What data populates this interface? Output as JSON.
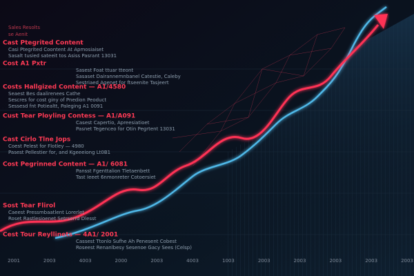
{
  "header": {
    "title": "Sales Resolts",
    "subtitle": "se Aenit"
  },
  "blocks": [
    {
      "heading": "Cast Ptegrited Content",
      "lines": [
        "Casi Ptegrited Coontent At Apmosiaiset",
        "Sasalt tusied sateeit tos Asiss Pasrant 13031"
      ]
    },
    {
      "heading": "Cost A1 Pxtr",
      "lines": [
        "Sasest Foat ttuar tteont",
        "Sasaset Dairannemnbanel Catestie, Caleby",
        "Sestriaed Agenet for ftseenite Tasjeert"
      ]
    },
    {
      "heading": "Costs Hallgized Content — A1/4580",
      "lines": [
        "Seaest Bes daalirenees Cathe",
        "Sescres for cost giny of Pnedion Peoduct",
        "Sessesd fnt Potiealtt, Paleging A1 0091"
      ]
    },
    {
      "heading": "Cust Tear Ployling Contess — A1/A091",
      "lines": [
        "Casest Capertio, Apreesiatioet",
        "Pasnet Tegenceo for Otin Pegrtent 13031"
      ]
    },
    {
      "heading": "Cast Cirlo Tlne Jops",
      "lines": [
        "Coest Pelest for Flotley — 4980",
        "Pasest Pellestier for, and Kgeeeiong Lt0B1"
      ]
    },
    {
      "heading": "Cost Pegrinned Content — A1/ 6081",
      "lines": [
        "Pansst Fgenttalion Tletaenbett",
        "Tast Ieeet 6nmonreter Cotoersiet"
      ]
    },
    {
      "heading": "Sost Tear Flirol",
      "lines": [
        "Caeest Pressmbaatlent Lorerlet",
        "Roset Rastlesioenet Setrsorrd Dlesst"
      ]
    },
    {
      "heading": "Cest Tour Reyllinets — 4A1/ 2001",
      "lines": [
        "Cassest Ttonlo Sufhe Ah Penesent Cobest",
        "Roseest Renanlbesy Sesenoe Gacy Sees (Celsp)"
      ]
    }
  ],
  "x_labels": [
    "2001",
    "2003",
    "4003",
    "2000",
    "2003",
    "4003",
    "1003",
    "2003",
    "2003",
    "2003",
    "2003",
    "2003"
  ]
}
